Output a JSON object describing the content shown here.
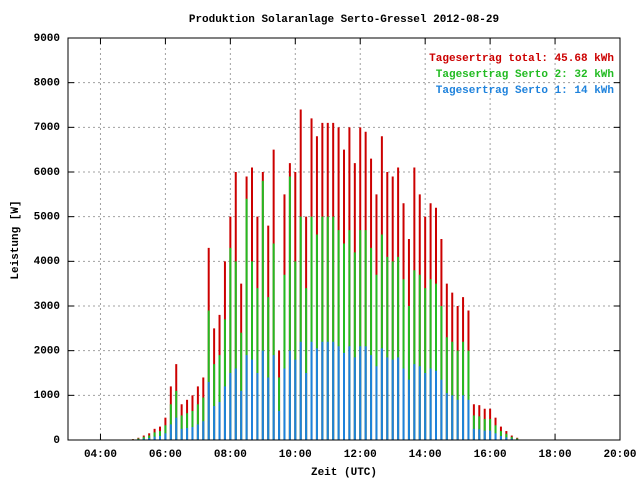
{
  "chart_data": {
    "type": "impulse",
    "title": "Produktion Solaranlage Serto-Gressel 2012-08-29",
    "x_label": "Zeit (UTC)",
    "y_label": "Leistung [W]",
    "x": [
      "05:00",
      "05:10",
      "05:20",
      "05:30",
      "05:40",
      "05:50",
      "06:00",
      "06:10",
      "06:20",
      "06:30",
      "06:40",
      "06:50",
      "07:00",
      "07:10",
      "07:20",
      "07:30",
      "07:40",
      "07:50",
      "08:00",
      "08:10",
      "08:20",
      "08:30",
      "08:40",
      "08:50",
      "09:00",
      "09:10",
      "09:20",
      "09:30",
      "09:40",
      "09:50",
      "10:00",
      "10:10",
      "10:20",
      "10:30",
      "10:40",
      "10:50",
      "11:00",
      "11:10",
      "11:20",
      "11:30",
      "11:40",
      "11:50",
      "12:00",
      "12:10",
      "12:20",
      "12:30",
      "12:40",
      "12:50",
      "13:00",
      "13:10",
      "13:20",
      "13:30",
      "13:40",
      "13:50",
      "14:00",
      "14:10",
      "14:20",
      "14:30",
      "14:40",
      "14:50",
      "15:00",
      "15:10",
      "15:20",
      "15:30",
      "15:40",
      "15:50",
      "16:00",
      "16:10",
      "16:20",
      "16:30",
      "16:40",
      "16:50",
      "17:00"
    ],
    "series": [
      {
        "name": "Tagesertrag total: 45.68 kWh",
        "color": "#cc0000",
        "values": [
          20,
          50,
          100,
          150,
          250,
          300,
          500,
          1200,
          1700,
          800,
          900,
          1000,
          1200,
          1400,
          4300,
          2500,
          2800,
          4000,
          5000,
          6000,
          3500,
          5900,
          6100,
          5000,
          6000,
          4800,
          6500,
          2000,
          5500,
          6200,
          6000,
          7400,
          5000,
          7200,
          6800,
          7100,
          7100,
          7100,
          7000,
          6500,
          7000,
          6200,
          7000,
          6900,
          6300,
          5500,
          6800,
          6000,
          5900,
          6100,
          5300,
          4500,
          6100,
          5500,
          5000,
          5300,
          5200,
          4500,
          3500,
          3300,
          3000,
          3200,
          2900,
          800,
          780,
          700,
          700,
          500,
          300,
          200,
          100,
          50,
          10
        ]
      },
      {
        "name": "Tagesertrag Serto 2: 32 kWh",
        "color": "#22bb22",
        "values": [
          15,
          35,
          70,
          100,
          170,
          200,
          330,
          800,
          1100,
          550,
          600,
          650,
          800,
          950,
          2900,
          1700,
          1900,
          2700,
          4300,
          4000,
          2400,
          5400,
          4000,
          3400,
          5800,
          3200,
          4400,
          1400,
          3700,
          5900,
          4000,
          5000,
          3400,
          5000,
          4600,
          5000,
          5000,
          5000,
          4700,
          4400,
          4700,
          4200,
          4700,
          4700,
          4300,
          3700,
          4600,
          4100,
          4000,
          4100,
          3600,
          3000,
          3800,
          3700,
          3400,
          3600,
          3500,
          3000,
          2300,
          2200,
          2000,
          2200,
          2000,
          550,
          530,
          470,
          470,
          330,
          200,
          140,
          70,
          35,
          7
        ]
      },
      {
        "name": "Tagesertrag Serto 1: 14 kWh",
        "color": "#1e82dc",
        "values": [
          5,
          15,
          30,
          45,
          75,
          90,
          150,
          350,
          500,
          250,
          270,
          290,
          350,
          420,
          1300,
          760,
          850,
          1200,
          1500,
          1600,
          1100,
          1900,
          1800,
          1500,
          2000,
          1400,
          1900,
          650,
          1600,
          2000,
          1800,
          2200,
          1500,
          2200,
          2050,
          2200,
          2200,
          2200,
          2100,
          1950,
          2100,
          1850,
          2100,
          2100,
          1900,
          1650,
          2050,
          1850,
          1800,
          1850,
          1600,
          1350,
          1700,
          1650,
          1500,
          1600,
          1550,
          1350,
          1050,
          1000,
          900,
          1000,
          900,
          250,
          240,
          210,
          210,
          150,
          90,
          60,
          30,
          15,
          3
        ]
      }
    ],
    "xlim": [
      "03:00",
      "20:00"
    ],
    "xticks": [
      "04:00",
      "06:00",
      "08:00",
      "10:00",
      "12:00",
      "14:00",
      "16:00",
      "18:00",
      "20:00"
    ],
    "ylim": [
      0,
      9000
    ],
    "yticks": [
      0,
      1000,
      2000,
      3000,
      4000,
      5000,
      6000,
      7000,
      8000,
      9000
    ],
    "grid": true,
    "legend": "top-right"
  }
}
